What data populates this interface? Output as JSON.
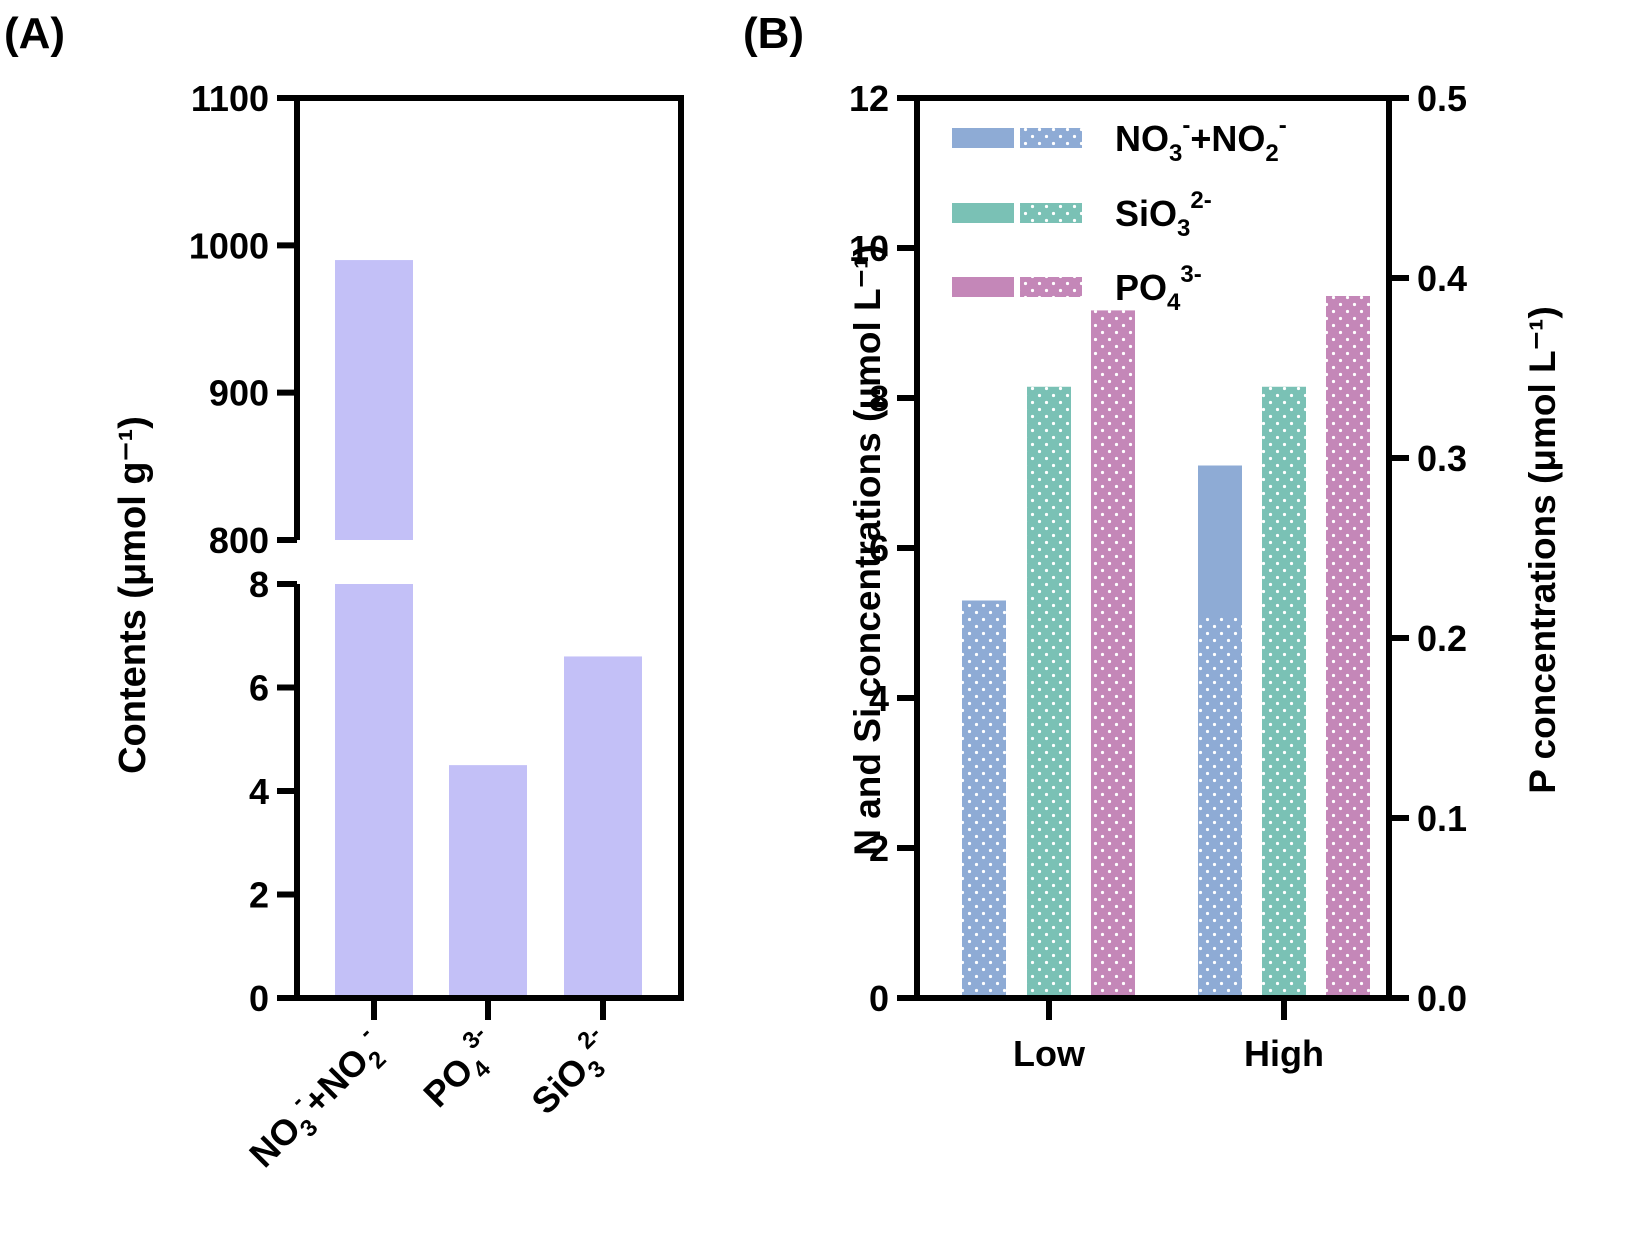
{
  "panel_labels": {
    "a": "(A)",
    "b": "(B)"
  },
  "colors": {
    "panel_a_bar": "#c3c0f7",
    "nitrate": "#8eabd5",
    "silicate": "#7ac1b5",
    "phosphate": "#c487b8",
    "axis": "#000000"
  },
  "chart_data": [
    {
      "id": "A",
      "type": "bar",
      "ylabel": "Contents (μmol g⁻¹)",
      "y_axis_break": {
        "lower_range": [
          0,
          8
        ],
        "upper_range": [
          800,
          1100
        ]
      },
      "yticks_lower": [
        "0",
        "2",
        "4",
        "6",
        "8"
      ],
      "yticks_upper": [
        "800",
        "900",
        "1000",
        "1100"
      ],
      "categories": [
        {
          "base": "NO",
          "sub1": "3",
          "sup1": "-",
          "mid": "+NO",
          "sub2": "2",
          "sup2": "-"
        },
        {
          "base": "PO",
          "sub1": "4",
          "sup1": "3-"
        },
        {
          "base": "SiO",
          "sub1": "3",
          "sup1": "2-"
        }
      ],
      "values": [
        990,
        4.5,
        6.6
      ]
    },
    {
      "id": "B",
      "type": "bar",
      "ylabel_left": "N and Si concentrations (μmol L⁻¹)",
      "ylabel_right": "P concentrations (μmol L⁻¹)",
      "ylim_left": [
        0,
        12
      ],
      "ylim_right": [
        0,
        0.5
      ],
      "yticks_left": [
        "0",
        "2",
        "4",
        "6",
        "8",
        "10",
        "12"
      ],
      "yticks_right": [
        "0.0",
        "0.1",
        "0.2",
        "0.3",
        "0.4",
        "0.5"
      ],
      "categories": [
        "Low",
        "High"
      ],
      "legend": [
        {
          "base": "NO",
          "sub1": "3",
          "sup1": "-",
          "mid": "+NO",
          "sub2": "2",
          "sup2": "-"
        },
        {
          "base": "SiO",
          "sub1": "3",
          "sup1": "2-"
        },
        {
          "base": "PO",
          "sub1": "4",
          "sup1": "3-"
        }
      ],
      "series": [
        {
          "name": "NO3- + NO2-",
          "axis": "left",
          "values": [
            5.3,
            7.1
          ],
          "dotted_part": [
            5.3,
            5.1
          ]
        },
        {
          "name": "SiO3 2-",
          "axis": "left",
          "values": [
            8.15,
            8.15
          ]
        },
        {
          "name": "PO4 3-",
          "axis": "right",
          "values": [
            0.382,
            0.39
          ]
        }
      ]
    }
  ]
}
